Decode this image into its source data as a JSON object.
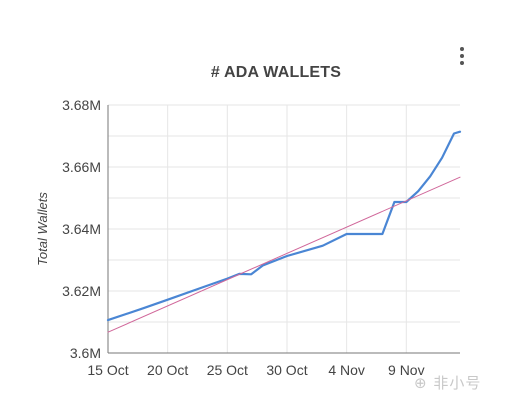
{
  "chart_data": {
    "type": "line",
    "title": "# ADA WALLETS",
    "ylabel": "Total Wallets",
    "xlabel": "",
    "ylim": [
      3.6,
      3.68
    ],
    "xlim": [
      15,
      44.5
    ],
    "y_ticks": [
      {
        "value": 3.6,
        "label": "3.6M"
      },
      {
        "value": 3.62,
        "label": "3.62M"
      },
      {
        "value": 3.64,
        "label": "3.64M"
      },
      {
        "value": 3.66,
        "label": "3.66M"
      },
      {
        "value": 3.68,
        "label": "3.68M"
      }
    ],
    "x_ticks": [
      {
        "value": 15,
        "label": "15 Oct"
      },
      {
        "value": 20,
        "label": "20 Oct"
      },
      {
        "value": 25,
        "label": "25 Oct"
      },
      {
        "value": 30,
        "label": "30 Oct"
      },
      {
        "value": 35,
        "label": "4 Nov"
      },
      {
        "value": 40,
        "label": "9 Nov"
      }
    ],
    "grid": true,
    "series": [
      {
        "color": "#4a86d4",
        "x": [
          15,
          18,
          20,
          23,
          25,
          26,
          27,
          28,
          30,
          33,
          35,
          38,
          39,
          40,
          41,
          42,
          43,
          44,
          44.5
        ],
        "y": [
          3.6106,
          3.6145,
          3.6172,
          3.6213,
          3.624,
          3.6255,
          3.6254,
          3.6283,
          3.6313,
          3.6346,
          3.6384,
          3.6384,
          3.6487,
          3.6487,
          3.6522,
          3.657,
          3.663,
          3.6708,
          3.6714
        ]
      },
      {
        "color": "#d0679a",
        "x": [
          15,
          44.5
        ],
        "y": [
          3.6067,
          3.6567
        ]
      }
    ]
  },
  "watermark": "⊕ 非小号"
}
